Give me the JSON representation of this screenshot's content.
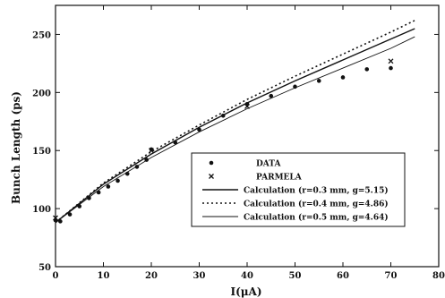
{
  "chart_data": {
    "type": "line",
    "title": "",
    "xlabel": "I(μA)",
    "ylabel": "Bunch Length (ps)",
    "xlim": [
      0,
      80
    ],
    "ylim": [
      50,
      275
    ],
    "x_ticks": [
      0,
      10,
      20,
      30,
      40,
      50,
      60,
      70,
      80
    ],
    "y_ticks": [
      50,
      100,
      150,
      200,
      250
    ],
    "grid": false,
    "legend_position": "bottom-right",
    "series": [
      {
        "name": "DATA",
        "kind": "scatter",
        "marker": "circle",
        "color": "#111111",
        "x": [
          0,
          1,
          3,
          5,
          7,
          9,
          11,
          13,
          15,
          17,
          19,
          20,
          25,
          30,
          35,
          40,
          45,
          50,
          55,
          60,
          65,
          70
        ],
        "y": [
          90,
          89,
          95,
          102,
          109,
          114,
          119,
          124,
          130,
          136,
          142,
          151,
          157,
          168,
          180,
          190,
          197,
          205,
          210,
          213,
          220,
          221
        ]
      },
      {
        "name": "PARMELA",
        "kind": "scatter",
        "marker": "x",
        "color": "#111111",
        "x": [
          0,
          20,
          40,
          70
        ],
        "y": [
          92,
          150,
          188,
          227
        ]
      },
      {
        "name": "Calculation (r=0.3 mm, g=5.15)",
        "kind": "line",
        "dash": "solid",
        "color": "#111111",
        "x": [
          0,
          10,
          20,
          30,
          40,
          50,
          60,
          70,
          75
        ],
        "y": [
          88,
          121,
          147,
          170,
          191,
          210,
          228,
          246,
          255
        ]
      },
      {
        "name": "Calculation (r=0.4 mm, g=4.86)",
        "kind": "line",
        "dash": "dotted",
        "color": "#111111",
        "x": [
          0,
          10,
          20,
          30,
          40,
          50,
          60,
          70,
          75
        ],
        "y": [
          88,
          122,
          149,
          172,
          194,
          214,
          233,
          252,
          262
        ]
      },
      {
        "name": "Calculation (r=0.5 mm, g=4.64)",
        "kind": "line",
        "dash": "thin",
        "color": "#111111",
        "x": [
          0,
          10,
          20,
          30,
          40,
          50,
          60,
          70,
          75
        ],
        "y": [
          88,
          119,
          144,
          166,
          186,
          204,
          221,
          238,
          248
        ]
      }
    ]
  }
}
